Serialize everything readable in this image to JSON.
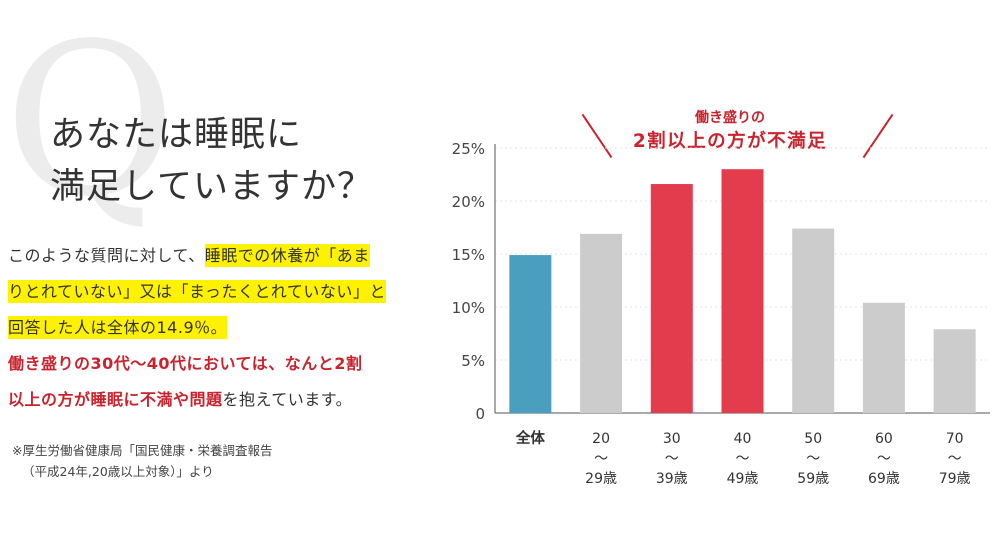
{
  "q_mark": "Q",
  "heading": {
    "line1": "あなたは睡眠に",
    "line2": "満足していますか？"
  },
  "body": {
    "seg1": "このような質問に対して、",
    "seg2": "睡眠での休養が「あま",
    "seg3": "りとれていない」又は「まったくとれていない」と",
    "seg4": "回答した人は全体の14.9％。",
    "seg5": "働き盛りの30代～40代においては、なんと2割",
    "seg6": "以上の方が睡眠に不満や問題",
    "seg7": "を抱えています。"
  },
  "source": {
    "line1": "※厚生労働省健康局「国民健康・栄養調査報告",
    "line2": "（平成24年,20歳以上対象）」より"
  },
  "callout": {
    "line1": "働き盛りの",
    "line2": "2割以上の方が不満足"
  },
  "colors": {
    "total": "#4a9fbe",
    "highlight": "#e33c4c",
    "default": "#cccccc",
    "accent_red": "#c9242e",
    "marker_yellow": "#fff200"
  },
  "chart_data": {
    "type": "bar",
    "categories": [
      "全体",
      "20〜29歳",
      "30〜39歳",
      "40〜49歳",
      "50〜59歳",
      "60〜69歳",
      "70〜79歳"
    ],
    "category_lines": [
      [
        "全体"
      ],
      [
        "20",
        "〜",
        "29歳"
      ],
      [
        "30",
        "〜",
        "39歳"
      ],
      [
        "40",
        "〜",
        "49歳"
      ],
      [
        "50",
        "〜",
        "59歳"
      ],
      [
        "60",
        "〜",
        "69歳"
      ],
      [
        "70",
        "〜",
        "79歳"
      ]
    ],
    "values": [
      14.9,
      16.9,
      21.6,
      23.0,
      17.4,
      10.4,
      7.9
    ],
    "bar_color_keys": [
      "total",
      "default",
      "highlight",
      "highlight",
      "default",
      "default",
      "default"
    ],
    "ylim": [
      0,
      25
    ],
    "y_ticks": [
      0,
      5,
      10,
      15,
      20,
      25
    ],
    "y_tick_labels": [
      "0",
      "5%",
      "10%",
      "15%",
      "20%",
      "25%"
    ],
    "grid": true,
    "title": "",
    "xlabel": "",
    "ylabel": ""
  }
}
